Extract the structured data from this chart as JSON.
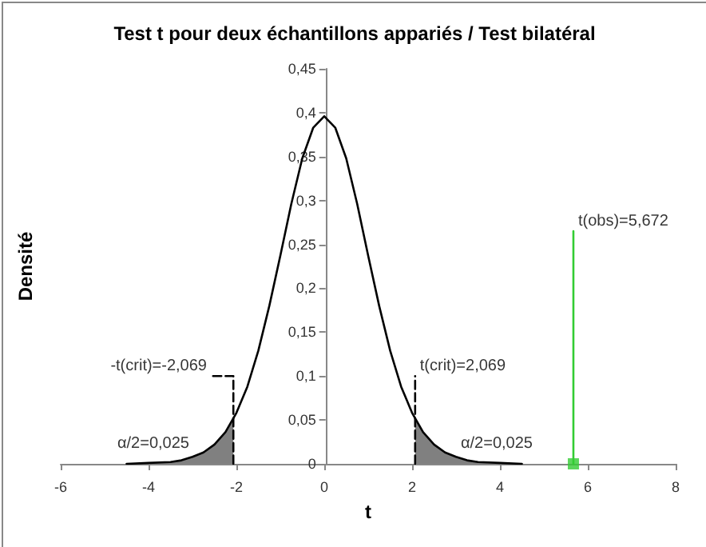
{
  "chart_data": {
    "type": "line",
    "title": "Test t pour deux échantillons appariés / Test bilatéral",
    "xlabel": "t",
    "ylabel": "Densité",
    "series": [
      {
        "color": "#000000",
        "x": [
          -4.5,
          -4,
          -3.5,
          -3.25,
          -3,
          -2.75,
          -2.5,
          -2.25,
          -2,
          -1.75,
          -1.5,
          -1.25,
          -1,
          -0.75,
          -0.5,
          -0.25,
          0,
          0.25,
          0.5,
          0.75,
          1,
          1.25,
          1.5,
          1.75,
          2,
          2.25,
          2.5,
          2.75,
          3,
          3.25,
          3.5,
          4,
          4.5
        ],
        "values": [
          0,
          0.001,
          0.002,
          0.004,
          0.008,
          0.013,
          0.022,
          0.036,
          0.058,
          0.088,
          0.129,
          0.18,
          0.237,
          0.296,
          0.348,
          0.383,
          0.396,
          0.383,
          0.348,
          0.296,
          0.237,
          0.18,
          0.129,
          0.088,
          0.058,
          0.036,
          0.022,
          0.013,
          0.008,
          0.004,
          0.002,
          0.001,
          0
        ]
      },
      {
        "type": "area",
        "color": "#808080",
        "x": [
          -4.5,
          -4,
          -3.5,
          -3.25,
          -3,
          -2.75,
          -2.5,
          -2.25,
          -2.069
        ],
        "values": [
          0,
          0.001,
          0.002,
          0.004,
          0.008,
          0.013,
          0.022,
          0.036,
          0.051
        ]
      },
      {
        "type": "area",
        "color": "#808080",
        "x": [
          2.069,
          2.25,
          2.5,
          2.75,
          3,
          3.25,
          3.5,
          4,
          4.5
        ],
        "values": [
          0.051,
          0.036,
          0.022,
          0.013,
          0.008,
          0.004,
          0.002,
          0.001,
          0
        ]
      },
      {
        "color": "#000000",
        "line_style": "dashed",
        "x": [
          -2.069,
          -2.069,
          -2.6
        ],
        "values": [
          0,
          0.1,
          0.1
        ]
      },
      {
        "color": "#000000",
        "line_style": "dashed",
        "x": [
          2.069,
          2.069
        ],
        "values": [
          0,
          0.1
        ]
      },
      {
        "color": "#33cc33",
        "x": [
          5.672,
          5.672
        ],
        "values": [
          0,
          0.265
        ]
      },
      {
        "type": "scatter",
        "color": "#33cc33",
        "marker": "square",
        "x": [
          5.672
        ],
        "values": [
          0
        ]
      }
    ],
    "annotations": [
      {
        "text": "-t(crit)=-2,069",
        "x": -2.6,
        "y": 0.1
      },
      {
        "text": "t(crit)=2,069",
        "x": 2.069,
        "y": 0.1
      },
      {
        "text": "α/2=0,025",
        "x": -3,
        "y": 0.012
      },
      {
        "text": "α/2=0,025",
        "x": 3,
        "y": 0.012
      },
      {
        "text": "t(obs)=5,672",
        "x": 5.672,
        "y": 0.265
      }
    ],
    "xlim": [
      -6,
      8
    ],
    "xticks": [
      -6,
      -4,
      -2,
      0,
      2,
      4,
      6,
      8
    ],
    "ylim": [
      0,
      0.45
    ],
    "yticks": [
      0,
      {
        "value": 0.05,
        "label": "0,05"
      },
      {
        "value": 0.1,
        "label": "0,1"
      },
      {
        "value": 0.15,
        "label": "0,15"
      },
      {
        "value": 0.2,
        "label": "0,2"
      },
      {
        "value": 0.25,
        "label": "0,25"
      },
      {
        "value": 0.3,
        "label": "0,3"
      },
      {
        "value": 0.35,
        "label": "0,35"
      },
      {
        "value": 0.4,
        "label": "0,4"
      },
      {
        "value": 0.45,
        "label": "0,45"
      }
    ],
    "grid": false,
    "marker": "none",
    "line_style": "solid"
  }
}
